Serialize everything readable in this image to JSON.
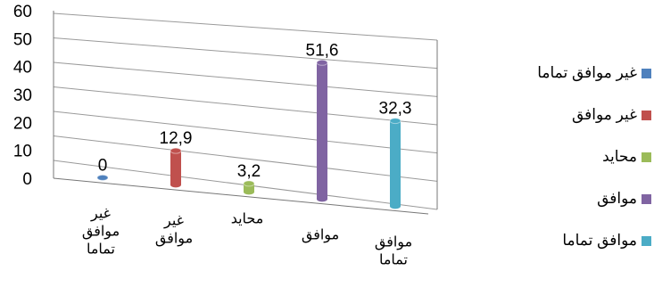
{
  "chart_data": {
    "type": "bar",
    "categories": [
      "غير موافق تماما",
      "غير موافق",
      "محايد",
      "موافق",
      "موافق تماما"
    ],
    "category_labels": [
      [
        "غير",
        "موافق",
        "تماما"
      ],
      [
        "غير",
        "موافق"
      ],
      [
        "محايد"
      ],
      [
        "موافق"
      ],
      [
        "موافق",
        "تماما"
      ]
    ],
    "values": [
      0,
      12.9,
      3.2,
      51.6,
      32.3
    ],
    "value_labels": [
      "0",
      "12,9",
      "3,2",
      "51,6",
      "32,3"
    ],
    "colors": [
      "#4F81BD",
      "#C0504D",
      "#9BBB59",
      "#8064A2",
      "#4BACC6"
    ],
    "ylim": [
      0,
      60
    ],
    "yticks": [
      "0",
      "10",
      "20",
      "30",
      "40",
      "50",
      "60"
    ],
    "grid": true,
    "legend_position": "right",
    "legend": [
      "غير موافق تماما",
      "غير موافق",
      "محايد",
      "موافق",
      "موافق تماما"
    ],
    "title": "",
    "xlabel": "",
    "ylabel": ""
  }
}
